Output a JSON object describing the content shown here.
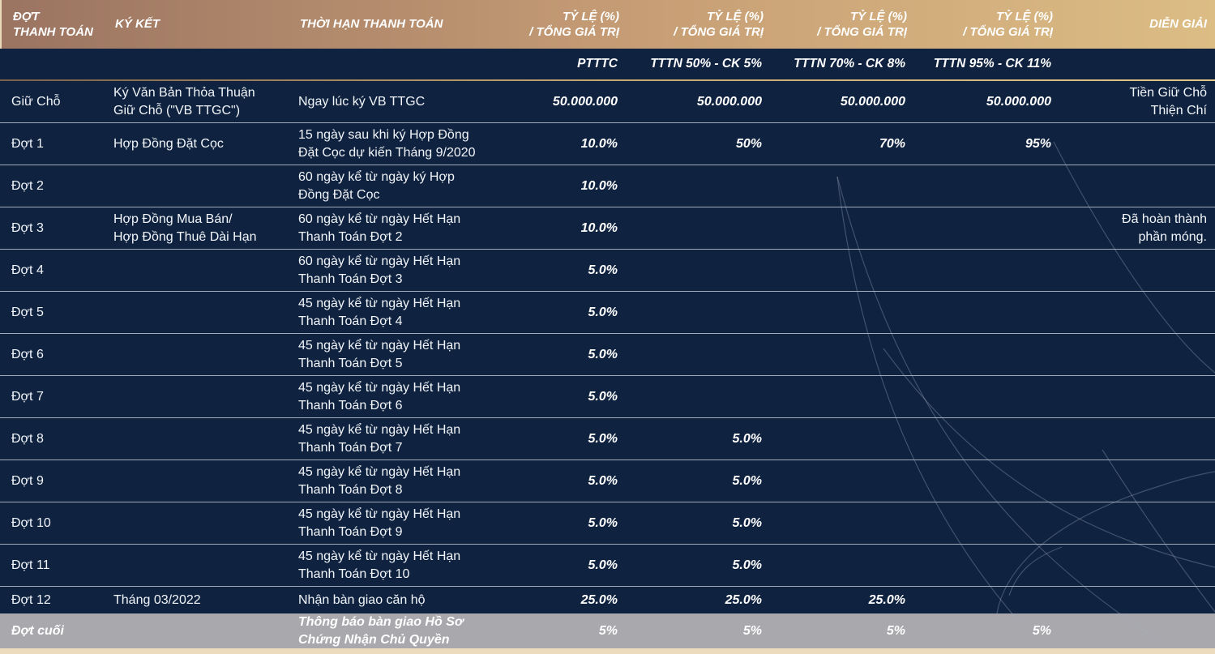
{
  "table": {
    "columns": [
      {
        "key": "phase",
        "label": "ĐỢT\nTHANH TOÁN",
        "sub": ""
      },
      {
        "key": "signing",
        "label": "KÝ KẾT",
        "sub": ""
      },
      {
        "key": "deadline",
        "label": "THỜI HẠN THANH TOÁN",
        "sub": ""
      },
      {
        "key": "ptttc",
        "label": "TỶ LỆ (%)\n/ TỔNG GIÁ TRỊ",
        "sub": "PTTTC"
      },
      {
        "key": "tttn50",
        "label": "TỶ LỆ (%)\n/ TỔNG GIÁ TRỊ",
        "sub": "TTTN 50% - CK 5%"
      },
      {
        "key": "tttn70",
        "label": "TỶ LỆ (%)\n/ TỔNG GIÁ TRỊ",
        "sub": "TTTN 70% - CK 8%"
      },
      {
        "key": "tttn95",
        "label": "TỶ LỆ (%)\n/ TỔNG GIÁ TRỊ",
        "sub": "TTTN 95% - CK 11%"
      },
      {
        "key": "note",
        "label": "DIỄN GIẢI",
        "sub": ""
      }
    ],
    "rows": [
      {
        "type": "normal",
        "phase": "Giữ Chỗ",
        "signing": "Ký Văn Bản Thỏa Thuận\nGiữ Chỗ (\"VB TTGC\")",
        "deadline": "Ngay lúc ký VB TTGC",
        "ptttc": "50.000.000",
        "tttn50": "50.000.000",
        "tttn70": "50.000.000",
        "tttn95": "50.000.000",
        "note": "Tiền Giữ Chỗ\nThiện Chí"
      },
      {
        "type": "normal",
        "phase": "Đợt 1",
        "signing": "Hợp Đồng Đặt Cọc",
        "deadline": "15 ngày sau khi ký Hợp Đồng\nĐặt Cọc dự kiến Tháng 9/2020",
        "ptttc": "10.0%",
        "tttn50": "50%",
        "tttn70": "70%",
        "tttn95": "95%",
        "note": ""
      },
      {
        "type": "normal",
        "phase": "Đợt 2",
        "signing": "",
        "deadline": "60 ngày kể từ ngày ký Hợp\nĐồng Đặt Cọc",
        "ptttc": "10.0%",
        "tttn50": "",
        "tttn70": "",
        "tttn95": "",
        "note": ""
      },
      {
        "type": "normal",
        "phase": "Đợt 3",
        "signing": "Hợp Đồng Mua Bán/\nHợp Đồng Thuê Dài Hạn",
        "deadline": "60 ngày kể từ ngày Hết Hạn\nThanh Toán Đợt 2",
        "ptttc": "10.0%",
        "tttn50": "",
        "tttn70": "",
        "tttn95": "",
        "note": "Đã hoàn thành\nphần móng."
      },
      {
        "type": "normal",
        "phase": "Đợt 4",
        "signing": "",
        "deadline": "60 ngày kể từ ngày Hết Hạn\nThanh Toán Đợt 3",
        "ptttc": "5.0%",
        "tttn50": "",
        "tttn70": "",
        "tttn95": "",
        "note": ""
      },
      {
        "type": "normal",
        "phase": "Đợt 5",
        "signing": "",
        "deadline": "45 ngày kể từ ngày Hết Hạn\nThanh Toán Đợt 4",
        "ptttc": "5.0%",
        "tttn50": "",
        "tttn70": "",
        "tttn95": "",
        "note": ""
      },
      {
        "type": "normal",
        "phase": "Đợt 6",
        "signing": "",
        "deadline": "45 ngày kể từ ngày Hết Hạn\nThanh Toán Đợt 5",
        "ptttc": "5.0%",
        "tttn50": "",
        "tttn70": "",
        "tttn95": "",
        "note": ""
      },
      {
        "type": "normal",
        "phase": "Đợt 7",
        "signing": "",
        "deadline": "45 ngày kể từ ngày Hết Hạn\nThanh Toán Đợt 6",
        "ptttc": "5.0%",
        "tttn50": "",
        "tttn70": "",
        "tttn95": "",
        "note": ""
      },
      {
        "type": "normal",
        "phase": "Đợt 8",
        "signing": "",
        "deadline": "45 ngày kể từ ngày Hết Hạn\nThanh Toán Đợt 7",
        "ptttc": "5.0%",
        "tttn50": "5.0%",
        "tttn70": "",
        "tttn95": "",
        "note": ""
      },
      {
        "type": "normal",
        "phase": "Đợt 9",
        "signing": "",
        "deadline": "45 ngày kể từ ngày Hết Hạn\nThanh Toán Đợt 8",
        "ptttc": "5.0%",
        "tttn50": "5.0%",
        "tttn70": "",
        "tttn95": "",
        "note": ""
      },
      {
        "type": "normal",
        "phase": "Đợt 10",
        "signing": "",
        "deadline": "45 ngày kể từ ngày Hết Hạn\nThanh Toán Đợt 9",
        "ptttc": "5.0%",
        "tttn50": "5.0%",
        "tttn70": "",
        "tttn95": "",
        "note": ""
      },
      {
        "type": "normal",
        "phase": "Đợt 11",
        "signing": "",
        "deadline": "45 ngày kể từ ngày Hết Hạn\nThanh Toán Đợt 10",
        "ptttc": "5.0%",
        "tttn50": "5.0%",
        "tttn70": "",
        "tttn95": "",
        "note": ""
      },
      {
        "type": "compact",
        "phase": "Đợt 12",
        "signing": "Tháng 03/2022",
        "deadline": "Nhận bàn giao căn hộ",
        "ptttc": "25.0%",
        "tttn50": "25.0%",
        "tttn70": "25.0%",
        "tttn95": "",
        "note": ""
      },
      {
        "type": "final",
        "phase": "Đợt cuối",
        "signing": "",
        "deadline": "Thông báo bàn giao Hồ Sơ\nChứng Nhận Chủ Quyền",
        "ptttc": "5%",
        "tttn50": "5%",
        "tttn70": "5%",
        "tttn95": "5%",
        "note": ""
      }
    ]
  },
  "colors": {
    "body_navy": "#0f2340",
    "header_gradient_left": "#9b7462",
    "header_gradient_right": "#dcbd84",
    "final_row_gray": "#a8a8ad",
    "bottom_strip_cream": "#ecdcbd",
    "row_separator": "#cbd4e0",
    "text": "#ffffff"
  }
}
